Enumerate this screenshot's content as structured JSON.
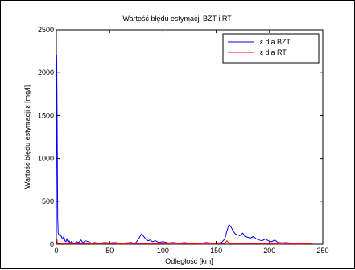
{
  "chart_data": {
    "type": "line",
    "title": "Wartość błędu estymacji BZT i RT",
    "xlabel": "Odległość [km]",
    "ylabel": "Wartość błędu estymacji    ε   [mg/l]",
    "xlim": [
      0,
      250
    ],
    "ylim": [
      0,
      2500
    ],
    "x_ticks": [
      "0",
      "50",
      "100",
      "150",
      "200",
      "250"
    ],
    "y_ticks": [
      "0",
      "500",
      "1000",
      "1500",
      "2000",
      "2500"
    ],
    "grid": false,
    "legend_position": "top-right",
    "legend": [
      {
        "label": "ε  dla BZT",
        "color": "#0000ff"
      },
      {
        "label": "ε  dla  RT",
        "color": "#ff0000"
      }
    ],
    "series": [
      {
        "name": "ε  dla BZT",
        "color": "#0000ff",
        "points": [
          [
            0,
            10
          ],
          [
            0.3,
            2210
          ],
          [
            0.6,
            1700
          ],
          [
            1,
            900
          ],
          [
            1.3,
            300
          ],
          [
            1.7,
            130
          ],
          [
            2,
            120
          ],
          [
            3,
            100
          ],
          [
            4,
            110
          ],
          [
            5,
            80
          ],
          [
            6,
            60
          ],
          [
            7,
            90
          ],
          [
            8,
            40
          ],
          [
            9,
            30
          ],
          [
            10,
            60
          ],
          [
            11,
            20
          ],
          [
            12,
            40
          ],
          [
            13,
            10
          ],
          [
            14,
            30
          ],
          [
            15,
            20
          ],
          [
            17,
            10
          ],
          [
            19,
            30
          ],
          [
            21,
            20
          ],
          [
            23,
            50
          ],
          [
            25,
            15
          ],
          [
            27,
            40
          ],
          [
            30,
            30
          ],
          [
            33,
            10
          ],
          [
            36,
            20
          ],
          [
            40,
            10
          ],
          [
            45,
            20
          ],
          [
            50,
            15
          ],
          [
            55,
            20
          ],
          [
            60,
            10
          ],
          [
            65,
            15
          ],
          [
            70,
            20
          ],
          [
            74,
            10
          ],
          [
            76,
            40
          ],
          [
            78,
            80
          ],
          [
            80,
            120
          ],
          [
            82,
            90
          ],
          [
            84,
            60
          ],
          [
            86,
            40
          ],
          [
            88,
            50
          ],
          [
            90,
            30
          ],
          [
            93,
            40
          ],
          [
            96,
            20
          ],
          [
            100,
            30
          ],
          [
            105,
            15
          ],
          [
            110,
            20
          ],
          [
            115,
            10
          ],
          [
            120,
            20
          ],
          [
            125,
            10
          ],
          [
            130,
            15
          ],
          [
            135,
            10
          ],
          [
            140,
            20
          ],
          [
            145,
            15
          ],
          [
            150,
            10
          ],
          [
            155,
            20
          ],
          [
            158,
            60
          ],
          [
            160,
            150
          ],
          [
            162,
            230
          ],
          [
            164,
            200
          ],
          [
            166,
            150
          ],
          [
            168,
            120
          ],
          [
            170,
            110
          ],
          [
            172,
            100
          ],
          [
            175,
            130
          ],
          [
            177,
            90
          ],
          [
            180,
            80
          ],
          [
            182,
            70
          ],
          [
            185,
            90
          ],
          [
            188,
            60
          ],
          [
            190,
            50
          ],
          [
            193,
            40
          ],
          [
            196,
            60
          ],
          [
            199,
            40
          ],
          [
            202,
            30
          ],
          [
            205,
            50
          ],
          [
            208,
            20
          ],
          [
            212,
            15
          ],
          [
            216,
            20
          ],
          [
            220,
            10
          ],
          [
            225,
            10
          ],
          [
            230,
            5
          ],
          [
            235,
            8
          ],
          [
            240,
            5
          ]
        ]
      },
      {
        "name": "ε  dla  RT",
        "color": "#ff0000",
        "points": [
          [
            0,
            5
          ],
          [
            0.5,
            60
          ],
          [
            1,
            20
          ],
          [
            2,
            5
          ],
          [
            10,
            5
          ],
          [
            20,
            8
          ],
          [
            30,
            5
          ],
          [
            40,
            5
          ],
          [
            50,
            6
          ],
          [
            60,
            4
          ],
          [
            70,
            5
          ],
          [
            80,
            6
          ],
          [
            90,
            5
          ],
          [
            100,
            5
          ],
          [
            110,
            4
          ],
          [
            120,
            5
          ],
          [
            130,
            5
          ],
          [
            140,
            4
          ],
          [
            150,
            5
          ],
          [
            158,
            8
          ],
          [
            160,
            40
          ],
          [
            162,
            15
          ],
          [
            164,
            5
          ],
          [
            170,
            5
          ],
          [
            180,
            6
          ],
          [
            190,
            5
          ],
          [
            200,
            5
          ],
          [
            210,
            4
          ],
          [
            220,
            5
          ],
          [
            230,
            4
          ],
          [
            240,
            5
          ]
        ]
      }
    ]
  }
}
